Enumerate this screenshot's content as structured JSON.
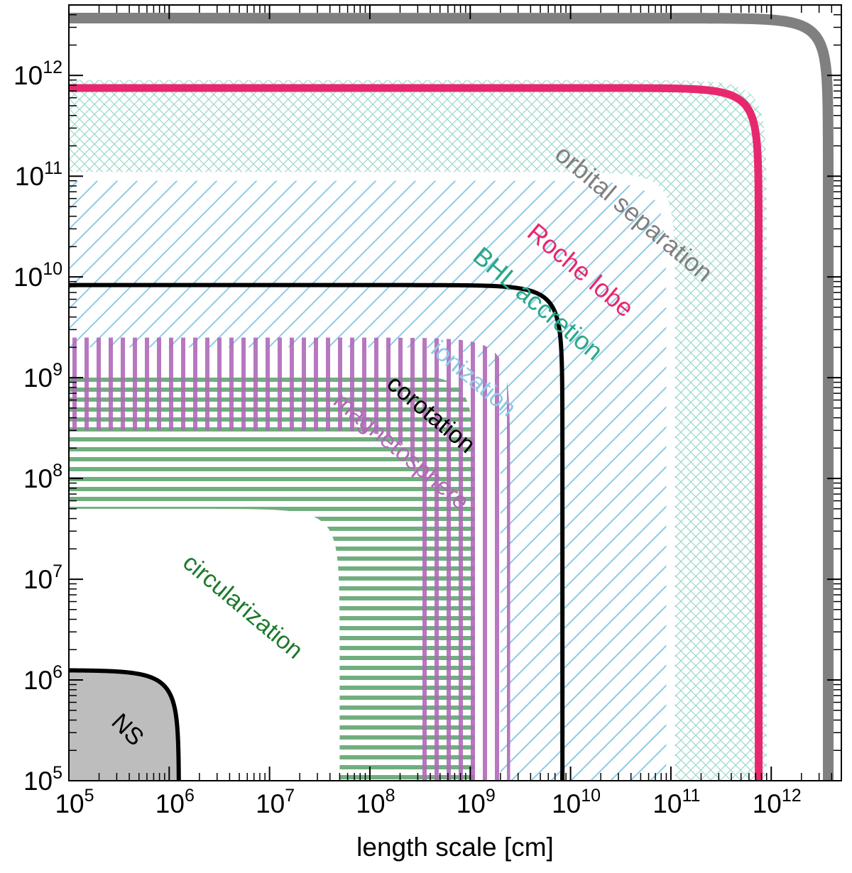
{
  "chart_data": {
    "type": "area",
    "title": "",
    "xlabel": "length scale [cm]",
    "ylabel": "",
    "x_scale": "log",
    "y_scale": "log",
    "xlim": [
      100000.0,
      5000000000000.0
    ],
    "ylim": [
      100000.0,
      5000000000000.0
    ],
    "grid": false,
    "legend": "none",
    "x_ticks": [
      {
        "value": 100000.0,
        "base": "10",
        "exp": "5"
      },
      {
        "value": 1000000.0,
        "base": "10",
        "exp": "6"
      },
      {
        "value": 10000000.0,
        "base": "10",
        "exp": "7"
      },
      {
        "value": 100000000.0,
        "base": "10",
        "exp": "8"
      },
      {
        "value": 1000000000.0,
        "base": "10",
        "exp": "9"
      },
      {
        "value": 10000000000.0,
        "base": "10",
        "exp": "10"
      },
      {
        "value": 100000000000.0,
        "base": "10",
        "exp": "11"
      },
      {
        "value": 1000000000000.0,
        "base": "10",
        "exp": "12"
      }
    ],
    "y_ticks": [
      {
        "value": 100000.0,
        "base": "10",
        "exp": "5"
      },
      {
        "value": 1000000.0,
        "base": "10",
        "exp": "6"
      },
      {
        "value": 10000000.0,
        "base": "10",
        "exp": "7"
      },
      {
        "value": 100000000.0,
        "base": "10",
        "exp": "8"
      },
      {
        "value": 1000000000.0,
        "base": "10",
        "exp": "9"
      },
      {
        "value": 10000000000.0,
        "base": "10",
        "exp": "10"
      },
      {
        "value": 100000000000.0,
        "base": "10",
        "exp": "11"
      },
      {
        "value": 1000000000000.0,
        "base": "10",
        "exp": "12"
      }
    ],
    "bands": [
      {
        "name": "BHL accretion",
        "r_inner": 110000000000.0,
        "r_outer": 900000000000.0,
        "pattern": "crosshatch",
        "color": "#2aa889"
      },
      {
        "name": "ionization",
        "r_inner": 2000000000.0,
        "r_outer": 90000000000.0,
        "pattern": "diagonal",
        "color": "#8ecae6"
      },
      {
        "name": "magnetosphere",
        "r_inner": 300000000.0,
        "r_outer": 2500000000.0,
        "pattern": "vertical",
        "color": "#b069b8"
      },
      {
        "name": "circularization",
        "r_inner": 50000000.0,
        "r_outer": 1100000000.0,
        "pattern": "horizontal",
        "color": "#4e9a5e"
      }
    ],
    "radii": [
      {
        "name": "orbital separation",
        "r": 3700000000000.0,
        "color": "#808080"
      },
      {
        "name": "Roche lobe",
        "r": 750000000000.0,
        "color": "#e8286e"
      },
      {
        "name": "corotation",
        "r": 8300000000.0,
        "color": "#000000"
      },
      {
        "name": "NS",
        "r": 1250000.0,
        "color": "#000000",
        "fill": "#bdbdbd"
      }
    ],
    "labels": [
      {
        "text": "orbital separation",
        "color": "#808080",
        "rot": 40
      },
      {
        "text": "Roche lobe",
        "color": "#e8286e",
        "rot": 40
      },
      {
        "text": "BHL accretion",
        "color": "#2aa889",
        "rot": 40
      },
      {
        "text": "ionization",
        "color": "#8ecae6",
        "rot": 40
      },
      {
        "text": "corotation",
        "color": "#000000",
        "rot": 40
      },
      {
        "text": "magnetosphere",
        "color": "#b069b8",
        "rot": 40
      },
      {
        "text": "circularization",
        "color": "#1e7a2c",
        "rot": 40
      },
      {
        "text": "NS",
        "color": "#000000",
        "rot": 45
      }
    ]
  }
}
